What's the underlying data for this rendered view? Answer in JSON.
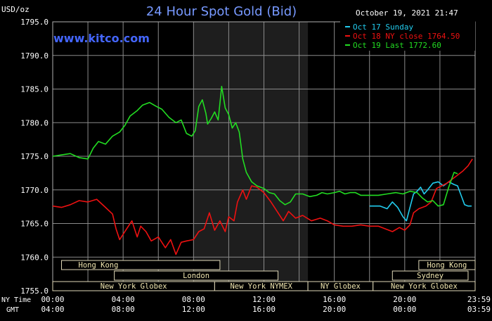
{
  "header": {
    "currency": "USD/oz",
    "title": "24 Hour Spot Gold (Bid)",
    "timestamp": "October 19, 2021 21:47",
    "watermark": "www.kitco.com"
  },
  "legend": [
    {
      "label": "Oct 17 Sunday",
      "color": "#22ccee"
    },
    {
      "label": "Oct 18 NY close 1764.50",
      "color": "#ee1111"
    },
    {
      "label": "Oct 19 Last 1772.60",
      "color": "#22dd22"
    }
  ],
  "sessions": {
    "row1": [
      {
        "label": "Hong Kong",
        "start": 0.5,
        "end": 9.5,
        "align": "left"
      },
      {
        "label": "Hong Kong",
        "start": 20.8,
        "end": 24,
        "align": "center"
      }
    ],
    "row2": [
      {
        "label": "London",
        "start": 3.5,
        "end": 12.8,
        "align": "center"
      },
      {
        "label": "Sydney",
        "start": 19.3,
        "end": 23.6,
        "align": "center"
      }
    ],
    "row3": [
      {
        "label": "New York Globex",
        "start": 0,
        "end": 9.2,
        "align": "center"
      },
      {
        "label": "New York NYMEX",
        "start": 9.2,
        "end": 14.5,
        "align": "center"
      },
      {
        "label": "NY Globex",
        "start": 14.5,
        "end": 18.2,
        "align": "center"
      },
      {
        "label": "New York Globex",
        "start": 18.2,
        "end": 24,
        "align": "center"
      }
    ]
  },
  "axis_labels": {
    "ny_time": "NY Time",
    "gmt": "GMT",
    "ny_ticks": [
      "00:00",
      "04:00",
      "08:00",
      "12:00",
      "16:00",
      "20:00",
      "23:59"
    ],
    "gmt_ticks": [
      "04:00",
      "08:00",
      "12:00",
      "16:00",
      "20:00",
      "00:00",
      "03:59"
    ]
  },
  "chart_data": {
    "type": "line",
    "title": "24 Hour Spot Gold (Bid)",
    "ylabel": "USD/oz",
    "xlabel": "NY Time",
    "ylim": [
      1755,
      1795
    ],
    "xlim": [
      0,
      24
    ],
    "yticks": [
      "1755.0",
      "1760.0",
      "1765.0",
      "1770.0",
      "1775.0",
      "1780.0",
      "1785.0",
      "1790.0",
      "1795.0"
    ],
    "shaded_range": [
      8,
      14.5
    ],
    "grid": true,
    "legend_position": "top-right",
    "series": [
      {
        "name": "Oct 17 Sunday",
        "color": "#22ccee",
        "points": [
          [
            18,
            1767.6
          ],
          [
            18.6,
            1767.6
          ],
          [
            19.0,
            1767.2
          ],
          [
            19.3,
            1768.2
          ],
          [
            19.6,
            1767.4
          ],
          [
            19.9,
            1766.0
          ],
          [
            20.1,
            1765.4
          ],
          [
            20.3,
            1767.4
          ],
          [
            20.5,
            1769.4
          ],
          [
            20.7,
            1769.8
          ],
          [
            20.9,
            1770.4
          ],
          [
            21.1,
            1769.4
          ],
          [
            21.3,
            1770.0
          ],
          [
            21.6,
            1771.0
          ],
          [
            21.9,
            1771.2
          ],
          [
            22.2,
            1770.6
          ],
          [
            22.5,
            1771.2
          ],
          [
            22.8,
            1770.8
          ],
          [
            23.0,
            1770.6
          ],
          [
            23.2,
            1769.2
          ],
          [
            23.4,
            1767.8
          ],
          [
            23.6,
            1767.6
          ],
          [
            23.8,
            1767.6
          ]
        ]
      },
      {
        "name": "Oct 18 NY close 1764.50",
        "color": "#ee1111",
        "points": [
          [
            0,
            1767.6
          ],
          [
            0.5,
            1767.4
          ],
          [
            1.0,
            1767.8
          ],
          [
            1.5,
            1768.4
          ],
          [
            2.0,
            1768.2
          ],
          [
            2.5,
            1768.6
          ],
          [
            3.0,
            1767.4
          ],
          [
            3.4,
            1766.4
          ],
          [
            3.6,
            1764.2
          ],
          [
            3.8,
            1762.6
          ],
          [
            4.2,
            1764.2
          ],
          [
            4.5,
            1765.4
          ],
          [
            4.8,
            1763.0
          ],
          [
            5.0,
            1764.6
          ],
          [
            5.3,
            1763.8
          ],
          [
            5.6,
            1762.4
          ],
          [
            6.0,
            1763.0
          ],
          [
            6.4,
            1761.4
          ],
          [
            6.7,
            1762.6
          ],
          [
            7.0,
            1760.4
          ],
          [
            7.3,
            1762.2
          ],
          [
            7.6,
            1762.4
          ],
          [
            8.0,
            1762.6
          ],
          [
            8.3,
            1763.8
          ],
          [
            8.6,
            1764.2
          ],
          [
            8.9,
            1766.6
          ],
          [
            9.2,
            1764.0
          ],
          [
            9.5,
            1765.4
          ],
          [
            9.8,
            1763.8
          ],
          [
            10.0,
            1766.0
          ],
          [
            10.3,
            1765.4
          ],
          [
            10.5,
            1768.2
          ],
          [
            10.8,
            1770.0
          ],
          [
            11.0,
            1768.6
          ],
          [
            11.3,
            1770.6
          ],
          [
            11.6,
            1770.4
          ],
          [
            12.0,
            1769.6
          ],
          [
            12.4,
            1768.2
          ],
          [
            12.8,
            1766.6
          ],
          [
            13.1,
            1765.4
          ],
          [
            13.4,
            1766.8
          ],
          [
            13.8,
            1765.8
          ],
          [
            14.2,
            1766.2
          ],
          [
            14.7,
            1765.4
          ],
          [
            15.2,
            1765.8
          ],
          [
            15.6,
            1765.4
          ],
          [
            16.0,
            1764.8
          ],
          [
            16.5,
            1764.6
          ],
          [
            17.0,
            1764.6
          ],
          [
            17.5,
            1764.8
          ],
          [
            18.0,
            1764.6
          ],
          [
            18.5,
            1764.6
          ],
          [
            18.9,
            1764.2
          ],
          [
            19.3,
            1763.8
          ],
          [
            19.7,
            1764.4
          ],
          [
            20.0,
            1764.0
          ],
          [
            20.3,
            1764.8
          ],
          [
            20.5,
            1766.6
          ],
          [
            20.8,
            1767.2
          ],
          [
            21.2,
            1767.6
          ],
          [
            21.5,
            1768.2
          ],
          [
            21.8,
            1770.2
          ],
          [
            22.1,
            1770.6
          ],
          [
            22.4,
            1771.0
          ],
          [
            22.7,
            1771.6
          ],
          [
            23.0,
            1772.2
          ],
          [
            23.3,
            1772.8
          ],
          [
            23.6,
            1773.6
          ],
          [
            23.85,
            1774.6
          ]
        ]
      },
      {
        "name": "Oct 19 Last 1772.60",
        "color": "#22dd22",
        "points": [
          [
            0,
            1775.0
          ],
          [
            0.5,
            1775.2
          ],
          [
            1.0,
            1775.4
          ],
          [
            1.5,
            1774.8
          ],
          [
            2.0,
            1774.6
          ],
          [
            2.3,
            1776.2
          ],
          [
            2.6,
            1777.2
          ],
          [
            3.0,
            1776.8
          ],
          [
            3.4,
            1778.0
          ],
          [
            3.8,
            1778.6
          ],
          [
            4.1,
            1779.6
          ],
          [
            4.4,
            1781.0
          ],
          [
            4.8,
            1781.8
          ],
          [
            5.1,
            1782.6
          ],
          [
            5.5,
            1783.0
          ],
          [
            5.9,
            1782.4
          ],
          [
            6.2,
            1782.0
          ],
          [
            6.6,
            1780.8
          ],
          [
            7.0,
            1780.0
          ],
          [
            7.3,
            1780.4
          ],
          [
            7.6,
            1778.4
          ],
          [
            7.9,
            1778.0
          ],
          [
            8.1,
            1778.8
          ],
          [
            8.3,
            1782.4
          ],
          [
            8.5,
            1783.4
          ],
          [
            8.7,
            1781.4
          ],
          [
            8.8,
            1779.8
          ],
          [
            9.0,
            1780.6
          ],
          [
            9.2,
            1781.6
          ],
          [
            9.4,
            1780.4
          ],
          [
            9.6,
            1785.4
          ],
          [
            9.8,
            1782.2
          ],
          [
            10.0,
            1781.2
          ],
          [
            10.2,
            1779.2
          ],
          [
            10.4,
            1780.0
          ],
          [
            10.6,
            1778.6
          ],
          [
            10.8,
            1774.6
          ],
          [
            11.0,
            1772.6
          ],
          [
            11.3,
            1771.2
          ],
          [
            11.6,
            1770.6
          ],
          [
            12.0,
            1770.2
          ],
          [
            12.3,
            1769.6
          ],
          [
            12.6,
            1769.4
          ],
          [
            12.9,
            1768.4
          ],
          [
            13.2,
            1767.8
          ],
          [
            13.5,
            1768.2
          ],
          [
            13.8,
            1769.4
          ],
          [
            14.2,
            1769.4
          ],
          [
            14.6,
            1769.0
          ],
          [
            15.0,
            1769.2
          ],
          [
            15.3,
            1769.6
          ],
          [
            15.6,
            1769.4
          ],
          [
            16.0,
            1769.6
          ],
          [
            16.3,
            1769.8
          ],
          [
            16.6,
            1769.4
          ],
          [
            16.9,
            1769.6
          ],
          [
            17.2,
            1769.6
          ],
          [
            17.5,
            1769.2
          ],
          [
            18.0,
            1769.2
          ],
          [
            18.5,
            1769.2
          ],
          [
            19.0,
            1769.4
          ],
          [
            19.5,
            1769.6
          ],
          [
            19.9,
            1769.4
          ],
          [
            20.3,
            1769.8
          ],
          [
            20.7,
            1769.6
          ],
          [
            21.0,
            1768.8
          ],
          [
            21.3,
            1768.2
          ],
          [
            21.6,
            1768.4
          ],
          [
            21.9,
            1767.6
          ],
          [
            22.2,
            1767.8
          ],
          [
            22.5,
            1770.4
          ],
          [
            22.8,
            1772.6
          ],
          [
            23.0,
            1772.4
          ]
        ]
      }
    ]
  }
}
